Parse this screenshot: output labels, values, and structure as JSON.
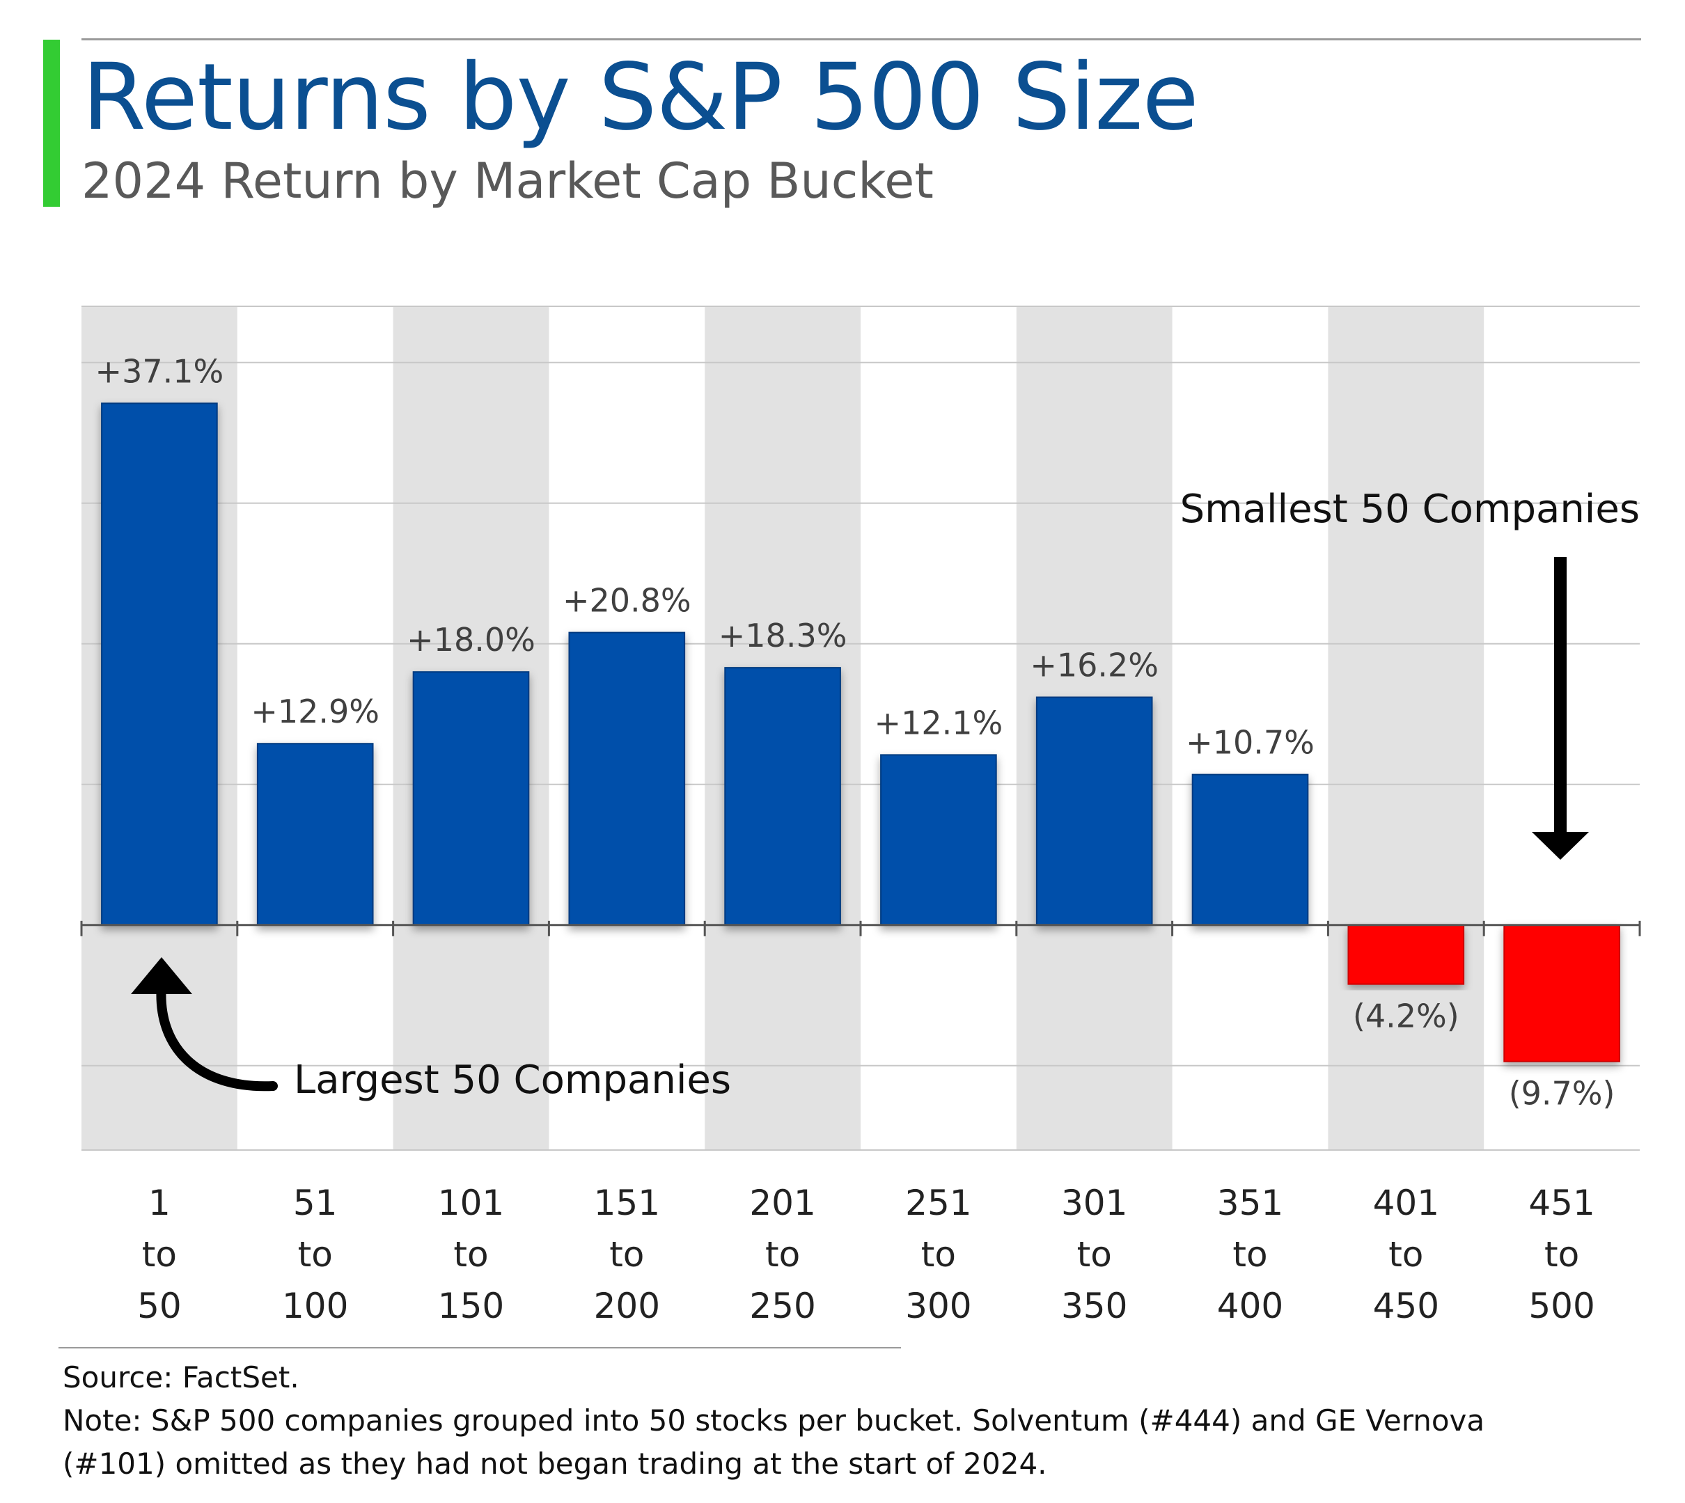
{
  "header": {
    "title": "Returns by S&P 500 Size",
    "subtitle": "2024 Return by Market Cap Bucket",
    "title_color": "#0b4f91",
    "accent_color": "#33cc33"
  },
  "chart_data": {
    "type": "bar",
    "title": "Returns by S&P 500 Size",
    "subtitle": "2024 Return by Market Cap Bucket",
    "xlabel": "",
    "ylabel": "",
    "categories": [
      "1 to 50",
      "51 to 100",
      "101 to 150",
      "151 to 200",
      "201 to 250",
      "251 to 300",
      "301 to 350",
      "351 to 400",
      "401 to 450",
      "451 to 500"
    ],
    "category_lines": [
      [
        "1",
        "to",
        "50"
      ],
      [
        "51",
        "to",
        "100"
      ],
      [
        "101",
        "to",
        "150"
      ],
      [
        "151",
        "to",
        "200"
      ],
      [
        "201",
        "to",
        "250"
      ],
      [
        "251",
        "to",
        "300"
      ],
      [
        "301",
        "to",
        "350"
      ],
      [
        "351",
        "to",
        "400"
      ],
      [
        "401",
        "to",
        "450"
      ],
      [
        "451",
        "to",
        "500"
      ]
    ],
    "values": [
      37.1,
      12.9,
      18.0,
      20.8,
      18.3,
      12.1,
      16.2,
      10.7,
      -4.2,
      -9.7
    ],
    "data_labels": [
      "+37.1%",
      "+12.9%",
      "+18.0%",
      "+20.8%",
      "+18.3%",
      "+12.1%",
      "+16.2%",
      "+10.7%",
      "(4.2%)",
      "(9.7%)"
    ],
    "ylim": [
      -16,
      44
    ],
    "gridline_step": 10,
    "grid": true,
    "alternating_column_shading": true,
    "colors": {
      "positive": "#0050aa",
      "negative": "#ff0000",
      "shade": "#e2e2e2",
      "grid": "#c8c8c8",
      "axis": "#555555"
    },
    "annotations": [
      {
        "text": "Largest 50 Companies",
        "target_category": "1 to 50",
        "arrow": "curved-up"
      },
      {
        "text": "Smallest 50 Companies",
        "target_category": "451 to 500",
        "arrow": "down"
      }
    ]
  },
  "footer": {
    "source": "Source: FactSet.",
    "note": "Note: S&P 500 companies grouped into 50 stocks per bucket. Solventum (#444) and GE Vernova (#101) omitted as they had not began trading at the start of 2024."
  }
}
